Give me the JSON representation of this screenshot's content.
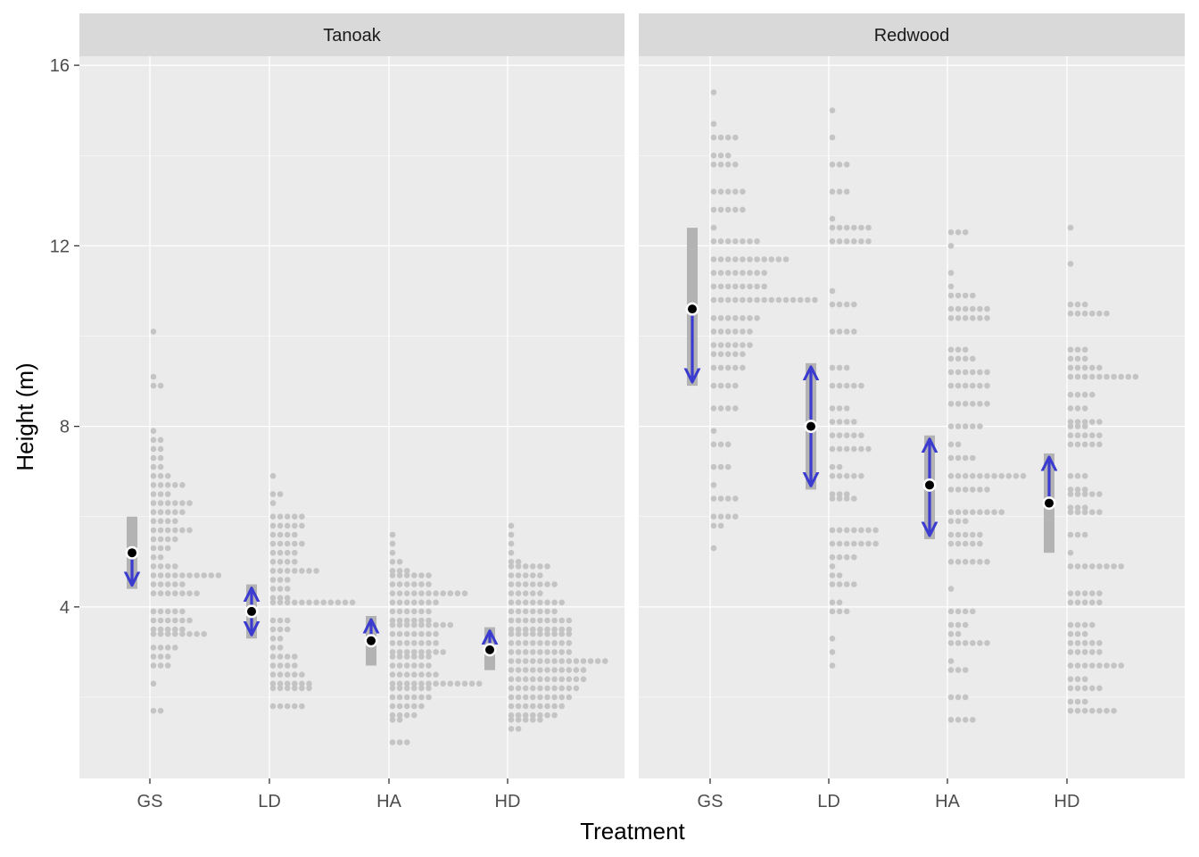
{
  "chart_data": {
    "type": "dotplot",
    "xlabel": "Treatment",
    "ylabel": "Height (m)",
    "ylim": [
      0.2,
      16.2
    ],
    "y_ticks": [
      4,
      8,
      12,
      16
    ],
    "grid": true,
    "colors": {
      "panel_bg": "#ebebeb",
      "strip_bg": "#d9d9d9",
      "grid": "#ffffff",
      "dot": "#c4c4c4",
      "interval": "#b3b3b3",
      "arrow": "#3b3bd0",
      "mean": "#000000"
    },
    "categories": [
      "GS",
      "LD",
      "HA",
      "HD"
    ],
    "panels": [
      {
        "title": "Tanoak",
        "summaries": [
          {
            "treatment": "GS",
            "estimate": 5.2,
            "lower": 4.4,
            "upper": 6.0,
            "arrow_to": 4.4
          },
          {
            "treatment": "LD",
            "estimate": 3.9,
            "lower": 3.3,
            "upper": 4.5,
            "arrow_to": [
              3.3,
              4.5
            ]
          },
          {
            "treatment": "HA",
            "estimate": 3.25,
            "lower": 2.7,
            "upper": 3.8,
            "arrow_to": 3.8
          },
          {
            "treatment": "HD",
            "estimate": 3.05,
            "lower": 2.6,
            "upper": 3.55,
            "arrow_to": 3.55
          }
        ],
        "observations": [
          {
            "treatment": "GS",
            "bins": [
              [
                10.1,
                1
              ],
              [
                9.1,
                1
              ],
              [
                8.9,
                2
              ],
              [
                7.9,
                1
              ],
              [
                7.7,
                2
              ],
              [
                7.5,
                2
              ],
              [
                7.3,
                2
              ],
              [
                7.1,
                2
              ],
              [
                6.9,
                3
              ],
              [
                6.7,
                5
              ],
              [
                6.5,
                3
              ],
              [
                6.3,
                6
              ],
              [
                6.1,
                5
              ],
              [
                5.9,
                4
              ],
              [
                5.7,
                6
              ],
              [
                5.5,
                4
              ],
              [
                5.3,
                3
              ],
              [
                5.1,
                2
              ],
              [
                4.9,
                4
              ],
              [
                4.7,
                10
              ],
              [
                4.5,
                5
              ],
              [
                4.3,
                7
              ],
              [
                3.9,
                5
              ],
              [
                3.7,
                6
              ],
              [
                3.5,
                5
              ],
              [
                3.4,
                8
              ],
              [
                3.1,
                4
              ],
              [
                2.9,
                3
              ],
              [
                2.7,
                3
              ],
              [
                2.3,
                1
              ],
              [
                1.7,
                2
              ]
            ]
          },
          {
            "treatment": "LD",
            "bins": [
              [
                6.9,
                1
              ],
              [
                6.5,
                2
              ],
              [
                6.3,
                1
              ],
              [
                6.0,
                5
              ],
              [
                5.8,
                5
              ],
              [
                5.6,
                4
              ],
              [
                5.4,
                5
              ],
              [
                5.2,
                4
              ],
              [
                5.0,
                4
              ],
              [
                4.8,
                7
              ],
              [
                4.6,
                3
              ],
              [
                4.4,
                3
              ],
              [
                4.2,
                3
              ],
              [
                4.1,
                12
              ],
              [
                3.7,
                3
              ],
              [
                3.5,
                3
              ],
              [
                3.3,
                2
              ],
              [
                3.1,
                2
              ],
              [
                2.9,
                4
              ],
              [
                2.7,
                4
              ],
              [
                2.5,
                5
              ],
              [
                2.3,
                6
              ],
              [
                2.2,
                6
              ],
              [
                1.8,
                5
              ]
            ]
          },
          {
            "treatment": "HA",
            "bins": [
              [
                5.6,
                1
              ],
              [
                5.4,
                1
              ],
              [
                5.2,
                1
              ],
              [
                5.0,
                2
              ],
              [
                4.8,
                3
              ],
              [
                4.7,
                6
              ],
              [
                4.5,
                6
              ],
              [
                4.3,
                11
              ],
              [
                4.1,
                7
              ],
              [
                3.9,
                6
              ],
              [
                3.7,
                6
              ],
              [
                3.6,
                9
              ],
              [
                3.4,
                7
              ],
              [
                3.2,
                7
              ],
              [
                3.0,
                8
              ],
              [
                2.9,
                6
              ],
              [
                2.7,
                6
              ],
              [
                2.5,
                7
              ],
              [
                2.3,
                13
              ],
              [
                2.2,
                6
              ],
              [
                2.0,
                6
              ],
              [
                1.8,
                5
              ],
              [
                1.6,
                4
              ],
              [
                1.5,
                2
              ],
              [
                1.0,
                3
              ]
            ]
          },
          {
            "treatment": "HD",
            "bins": [
              [
                5.8,
                1
              ],
              [
                5.6,
                1
              ],
              [
                5.4,
                1
              ],
              [
                5.2,
                1
              ],
              [
                5.0,
                2
              ],
              [
                4.9,
                6
              ],
              [
                4.7,
                5
              ],
              [
                4.5,
                7
              ],
              [
                4.3,
                5
              ],
              [
                4.1,
                8
              ],
              [
                3.9,
                7
              ],
              [
                3.7,
                9
              ],
              [
                3.5,
                9
              ],
              [
                3.4,
                9
              ],
              [
                3.2,
                9
              ],
              [
                3.0,
                9
              ],
              [
                2.8,
                14
              ],
              [
                2.6,
                11
              ],
              [
                2.4,
                11
              ],
              [
                2.2,
                10
              ],
              [
                2.0,
                9
              ],
              [
                1.8,
                8
              ],
              [
                1.6,
                7
              ],
              [
                1.5,
                5
              ],
              [
                1.3,
                2
              ]
            ]
          }
        ]
      },
      {
        "title": "Redwood",
        "summaries": [
          {
            "treatment": "GS",
            "estimate": 10.6,
            "lower": 8.9,
            "upper": 12.4,
            "arrow_to": 8.9
          },
          {
            "treatment": "LD",
            "estimate": 8.0,
            "lower": 6.6,
            "upper": 9.4,
            "arrow_to": [
              6.6,
              9.4
            ]
          },
          {
            "treatment": "HA",
            "estimate": 6.7,
            "lower": 5.5,
            "upper": 7.8,
            "arrow_to": [
              5.5,
              7.8
            ]
          },
          {
            "treatment": "HD",
            "estimate": 6.3,
            "lower": 5.2,
            "upper": 7.4,
            "arrow_to": 7.4
          }
        ],
        "observations": [
          {
            "treatment": "GS",
            "bins": [
              [
                15.4,
                1
              ],
              [
                14.7,
                1
              ],
              [
                14.4,
                4
              ],
              [
                14.0,
                3
              ],
              [
                13.8,
                4
              ],
              [
                13.2,
                5
              ],
              [
                12.8,
                5
              ],
              [
                12.4,
                1
              ],
              [
                12.1,
                7
              ],
              [
                11.7,
                11
              ],
              [
                11.4,
                8
              ],
              [
                11.1,
                8
              ],
              [
                10.8,
                15
              ],
              [
                10.4,
                7
              ],
              [
                10.1,
                6
              ],
              [
                9.8,
                6
              ],
              [
                9.6,
                5
              ],
              [
                9.3,
                5
              ],
              [
                8.9,
                4
              ],
              [
                8.4,
                4
              ],
              [
                7.9,
                1
              ],
              [
                7.6,
                3
              ],
              [
                7.1,
                3
              ],
              [
                6.7,
                1
              ],
              [
                6.4,
                4
              ],
              [
                6.0,
                4
              ],
              [
                5.8,
                2
              ],
              [
                5.3,
                1
              ]
            ]
          },
          {
            "treatment": "LD",
            "bins": [
              [
                15.0,
                1
              ],
              [
                14.4,
                1
              ],
              [
                13.8,
                3
              ],
              [
                13.2,
                3
              ],
              [
                12.6,
                1
              ],
              [
                12.4,
                6
              ],
              [
                12.1,
                6
              ],
              [
                11.0,
                1
              ],
              [
                10.7,
                4
              ],
              [
                10.1,
                4
              ],
              [
                9.3,
                3
              ],
              [
                8.9,
                5
              ],
              [
                8.4,
                3
              ],
              [
                8.1,
                4
              ],
              [
                7.8,
                5
              ],
              [
                7.5,
                6
              ],
              [
                7.1,
                2
              ],
              [
                6.9,
                5
              ],
              [
                6.5,
                3
              ],
              [
                6.4,
                4
              ],
              [
                5.7,
                7
              ],
              [
                5.4,
                7
              ],
              [
                5.1,
                4
              ],
              [
                4.9,
                1
              ],
              [
                4.7,
                2
              ],
              [
                4.5,
                4
              ],
              [
                4.1,
                2
              ],
              [
                3.9,
                3
              ],
              [
                3.3,
                1
              ],
              [
                3.0,
                1
              ],
              [
                2.7,
                1
              ]
            ]
          },
          {
            "treatment": "HA",
            "bins": [
              [
                12.3,
                3
              ],
              [
                12.0,
                1
              ],
              [
                11.4,
                1
              ],
              [
                11.1,
                1
              ],
              [
                10.9,
                4
              ],
              [
                10.6,
                6
              ],
              [
                10.4,
                6
              ],
              [
                9.7,
                3
              ],
              [
                9.5,
                4
              ],
              [
                9.2,
                6
              ],
              [
                8.9,
                6
              ],
              [
                8.5,
                6
              ],
              [
                8.0,
                5
              ],
              [
                7.6,
                2
              ],
              [
                7.3,
                4
              ],
              [
                6.9,
                11
              ],
              [
                6.6,
                6
              ],
              [
                6.1,
                8
              ],
              [
                5.9,
                3
              ],
              [
                5.6,
                5
              ],
              [
                5.4,
                5
              ],
              [
                5.0,
                6
              ],
              [
                4.4,
                1
              ],
              [
                3.9,
                4
              ],
              [
                3.6,
                3
              ],
              [
                3.4,
                2
              ],
              [
                3.2,
                6
              ],
              [
                2.8,
                1
              ],
              [
                2.6,
                3
              ],
              [
                2.0,
                3
              ],
              [
                1.5,
                4
              ]
            ]
          },
          {
            "treatment": "HD",
            "bins": [
              [
                12.4,
                1
              ],
              [
                11.6,
                1
              ],
              [
                10.7,
                3
              ],
              [
                10.5,
                6
              ],
              [
                9.7,
                3
              ],
              [
                9.5,
                3
              ],
              [
                9.3,
                5
              ],
              [
                9.1,
                10
              ],
              [
                8.7,
                4
              ],
              [
                8.4,
                3
              ],
              [
                8.1,
                5
              ],
              [
                8.0,
                3
              ],
              [
                7.8,
                5
              ],
              [
                7.6,
                5
              ],
              [
                6.9,
                3
              ],
              [
                6.6,
                3
              ],
              [
                6.5,
                5
              ],
              [
                6.2,
                3
              ],
              [
                6.1,
                5
              ],
              [
                5.6,
                3
              ],
              [
                5.2,
                1
              ],
              [
                4.9,
                8
              ],
              [
                4.3,
                5
              ],
              [
                4.1,
                5
              ],
              [
                3.6,
                4
              ],
              [
                3.4,
                3
              ],
              [
                3.2,
                5
              ],
              [
                3.0,
                5
              ],
              [
                2.7,
                8
              ],
              [
                2.4,
                3
              ],
              [
                2.2,
                5
              ],
              [
                1.9,
                3
              ],
              [
                1.7,
                7
              ]
            ]
          }
        ]
      }
    ]
  }
}
